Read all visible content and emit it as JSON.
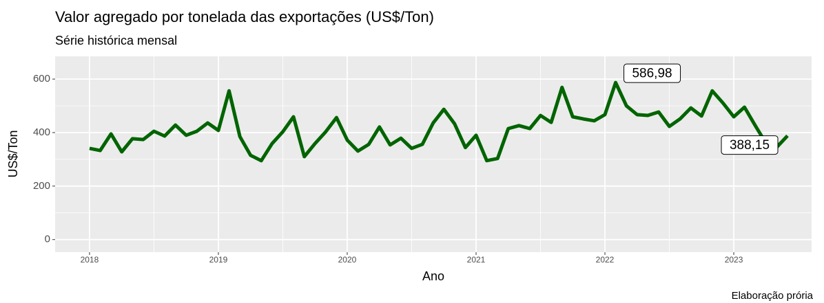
{
  "chart_data": {
    "type": "line",
    "title": "Valor agregado por tonelada das exportações (US$/Ton)",
    "subtitle": "Série histórica mensal",
    "x_label": "Ano",
    "y_label": "US$/Ton",
    "caption": "Elaboração prória",
    "x": [
      2018.0,
      2018.083,
      2018.167,
      2018.25,
      2018.333,
      2018.417,
      2018.5,
      2018.583,
      2018.667,
      2018.75,
      2018.833,
      2018.917,
      2019.0,
      2019.083,
      2019.167,
      2019.25,
      2019.333,
      2019.417,
      2019.5,
      2019.583,
      2019.667,
      2019.75,
      2019.833,
      2019.917,
      2020.0,
      2020.083,
      2020.167,
      2020.25,
      2020.333,
      2020.417,
      2020.5,
      2020.583,
      2020.667,
      2020.75,
      2020.833,
      2020.917,
      2021.0,
      2021.083,
      2021.167,
      2021.25,
      2021.333,
      2021.417,
      2021.5,
      2021.583,
      2021.667,
      2021.75,
      2021.833,
      2021.917,
      2022.0,
      2022.083,
      2022.167,
      2022.25,
      2022.333,
      2022.417,
      2022.5,
      2022.583,
      2022.667,
      2022.75,
      2022.833,
      2022.917,
      2023.0,
      2023.083,
      2023.167,
      2023.25,
      2023.333,
      2023.417
    ],
    "series": [
      {
        "name": "US$/Ton",
        "color": "#006400",
        "values": [
          341,
          333,
          395,
          328,
          377,
          374,
          405,
          387,
          428,
          390,
          405,
          436,
          408,
          556,
          385,
          315,
          295,
          359,
          403,
          459,
          310,
          359,
          403,
          456,
          372,
          331,
          356,
          421,
          354,
          379,
          341,
          356,
          436,
          487,
          433,
          344,
          390,
          295,
          303,
          415,
          426,
          415,
          464,
          438,
          569,
          459,
          451,
          444,
          467,
          586.98,
          500,
          467,
          464,
          477,
          423,
          451,
          492,
          462,
          556,
          510,
          459,
          495,
          426,
          360,
          345,
          388.15
        ],
        "value_labels": [
          null,
          null,
          null,
          null,
          null,
          null,
          null,
          null,
          null,
          null,
          null,
          null,
          null,
          null,
          null,
          null,
          null,
          null,
          null,
          null,
          null,
          null,
          null,
          null,
          null,
          null,
          null,
          null,
          null,
          null,
          null,
          null,
          null,
          null,
          null,
          null,
          null,
          null,
          null,
          null,
          null,
          null,
          null,
          null,
          null,
          null,
          null,
          null,
          null,
          "586,98",
          null,
          null,
          null,
          null,
          null,
          null,
          null,
          null,
          null,
          null,
          null,
          null,
          null,
          null,
          null,
          "388,15"
        ]
      }
    ],
    "xlim": [
      2017.733,
      2023.604
    ],
    "xticks": [
      2018,
      2019,
      2020,
      2021,
      2022,
      2023
    ],
    "ylim": [
      -47,
      685
    ],
    "yticks": [
      0,
      200,
      400,
      600
    ],
    "grid": true
  }
}
